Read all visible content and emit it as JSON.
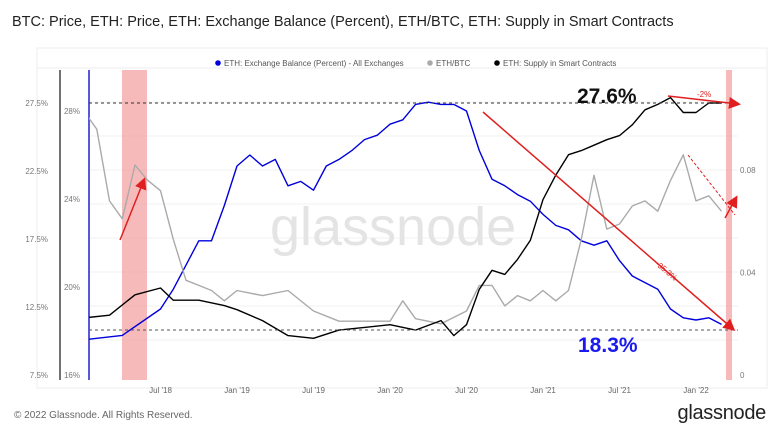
{
  "title": "BTC: Price, ETH: Price, ETH: Exchange Balance (Percent), ETH/BTC, ETH: Supply in Smart Contracts",
  "footer": "© 2022 Glassnode. All Rights Reserved.",
  "brand": "glassnode",
  "watermark": "glassnode",
  "chart_data": {
    "type": "line",
    "legend_position": "top",
    "grid": true,
    "x_ticks": [
      "Jul '18",
      "Jan '19",
      "Jul '19",
      "Jan '20",
      "Jul '20",
      "Jan '21",
      "Jul '21",
      "Jan '22"
    ],
    "x_tick_dates": [
      "2018-07",
      "2019-01",
      "2019-07",
      "2020-01",
      "2020-07",
      "2021-01",
      "2021-07",
      "2022-01"
    ],
    "axes": {
      "left_outer": {
        "ticks": [
          "7.5%",
          "12.5%",
          "17.5%",
          "22.5%",
          "27.5%"
        ],
        "range": [
          7.5,
          27.5
        ]
      },
      "left_inner": {
        "ticks": [
          "16%",
          "20%",
          "24%",
          "28%"
        ],
        "range": [
          16,
          28
        ]
      },
      "right": {
        "ticks": [
          "0",
          "0.04",
          "0.08"
        ],
        "range": [
          0,
          0.08
        ]
      }
    },
    "series": [
      {
        "name": "ETH: Exchange Balance (Percent) - All Exchanges",
        "color": "#0000dd",
        "axis": "left_inner",
        "x": [
          "2018-01",
          "2018-04",
          "2018-07",
          "2018-08",
          "2018-10",
          "2018-11",
          "2018-12",
          "2019-01",
          "2019-02",
          "2019-03",
          "2019-04",
          "2019-05",
          "2019-06",
          "2019-07",
          "2019-08",
          "2019-09",
          "2019-10",
          "2019-11",
          "2019-12",
          "2020-01",
          "2020-02",
          "2020-03",
          "2020-04",
          "2020-05",
          "2020-06",
          "2020-07",
          "2020-08",
          "2020-09",
          "2020-10",
          "2020-11",
          "2020-12",
          "2021-01",
          "2021-02",
          "2021-03",
          "2021-04",
          "2021-05",
          "2021-06",
          "2021-07",
          "2021-08",
          "2021-09",
          "2021-10",
          "2021-11",
          "2021-12",
          "2022-01",
          "2022-02",
          "2022-03"
        ],
        "y": [
          17.6,
          17.8,
          19.0,
          19.9,
          22.1,
          22.1,
          23.7,
          25.5,
          26.0,
          25.5,
          25.8,
          24.6,
          24.8,
          24.4,
          25.5,
          25.8,
          26.2,
          26.7,
          26.9,
          27.4,
          27.6,
          28.3,
          28.4,
          28.3,
          28.3,
          28.0,
          26.2,
          24.9,
          24.6,
          24.2,
          23.9,
          23.3,
          22.8,
          22.6,
          22.1,
          21.9,
          22.1,
          21.2,
          20.5,
          20.2,
          19.9,
          19.0,
          18.6,
          18.5,
          18.6,
          18.3
        ]
      },
      {
        "name": "ETH/BTC",
        "color": "#aaaaaa",
        "axis": "right",
        "x": [
          "2018-01",
          "2018-02",
          "2018-03",
          "2018-04",
          "2018-05",
          "2018-06",
          "2018-07",
          "2018-08",
          "2018-09",
          "2018-10",
          "2018-11",
          "2018-12",
          "2019-01",
          "2019-03",
          "2019-05",
          "2019-07",
          "2019-09",
          "2019-11",
          "2020-01",
          "2020-02",
          "2020-03",
          "2020-05",
          "2020-07",
          "2020-08",
          "2020-09",
          "2020-10",
          "2020-11",
          "2020-12",
          "2021-01",
          "2021-02",
          "2021-03",
          "2021-04",
          "2021-05",
          "2021-06",
          "2021-07",
          "2021-08",
          "2021-09",
          "2021-10",
          "2021-11",
          "2021-12",
          "2022-01",
          "2022-02",
          "2022-03"
        ],
        "y": [
          0.103,
          0.096,
          0.068,
          0.061,
          0.082,
          0.076,
          0.072,
          0.053,
          0.037,
          0.035,
          0.033,
          0.029,
          0.033,
          0.031,
          0.033,
          0.025,
          0.021,
          0.021,
          0.021,
          0.029,
          0.022,
          0.02,
          0.025,
          0.035,
          0.035,
          0.027,
          0.031,
          0.029,
          0.033,
          0.029,
          0.033,
          0.053,
          0.078,
          0.057,
          0.059,
          0.066,
          0.068,
          0.064,
          0.076,
          0.086,
          0.068,
          0.07,
          0.064
        ]
      },
      {
        "name": "ETH: Supply in Smart Contracts",
        "color": "#000000",
        "axis": "left_outer",
        "x": [
          "2018-01",
          "2018-03",
          "2018-05",
          "2018-07",
          "2018-08",
          "2018-10",
          "2018-12",
          "2019-01",
          "2019-03",
          "2019-05",
          "2019-07",
          "2019-09",
          "2019-11",
          "2020-01",
          "2020-03",
          "2020-05",
          "2020-06",
          "2020-07",
          "2020-08",
          "2020-09",
          "2020-10",
          "2020-11",
          "2020-12",
          "2021-01",
          "2021-02",
          "2021-03",
          "2021-04",
          "2021-05",
          "2021-06",
          "2021-07",
          "2021-08",
          "2021-09",
          "2021-10",
          "2021-11",
          "2021-12",
          "2022-01",
          "2022-02",
          "2022-03"
        ],
        "y": [
          11.7,
          11.9,
          13.4,
          13.9,
          13.0,
          13.0,
          12.6,
          12.3,
          11.5,
          10.4,
          10.2,
          10.8,
          11.0,
          11.2,
          10.8,
          11.5,
          10.4,
          11.2,
          13.8,
          15.2,
          14.9,
          16.0,
          17.4,
          20.4,
          22.2,
          23.7,
          24.0,
          24.4,
          24.8,
          25.1,
          25.9,
          27.0,
          27.4,
          27.9,
          26.8,
          26.8,
          27.5,
          27.5
        ]
      }
    ],
    "annotations": {
      "supply_level": "27.6%",
      "balance_level": "18.3%",
      "balance_change": "-35.3%",
      "supply_change": "-2%"
    },
    "highlight_color": "#f4a3a3",
    "annotation_color": "#e02020"
  }
}
